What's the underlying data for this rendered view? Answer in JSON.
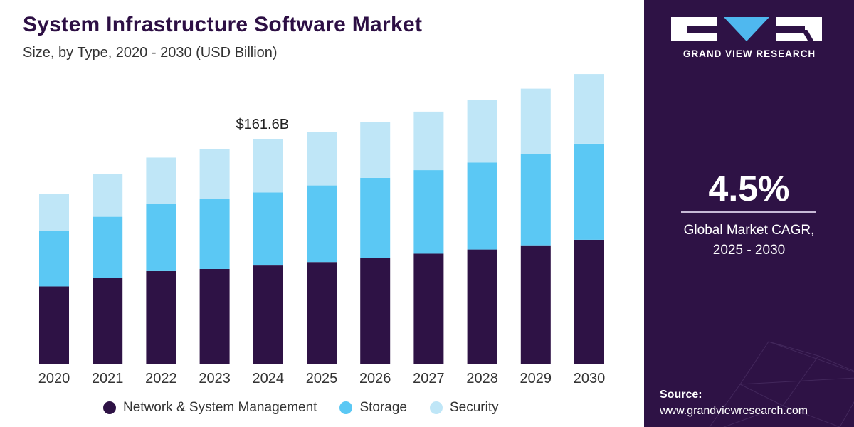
{
  "chart_data": {
    "type": "bar",
    "stacked": true,
    "title": "System Infrastructure Software Market",
    "subtitle": "Size, by Type, 2020 - 2030 (USD Billion)",
    "categories": [
      "2020",
      "2021",
      "2022",
      "2023",
      "2024",
      "2025",
      "2026",
      "2027",
      "2028",
      "2029",
      "2030"
    ],
    "series": [
      {
        "name": "Network & System Management",
        "color": "#2e1245",
        "values": [
          56.0,
          62.0,
          67.0,
          68.5,
          71.0,
          73.5,
          76.5,
          79.5,
          82.5,
          85.5,
          89.5
        ]
      },
      {
        "name": "Storage",
        "color": "#5bc8f4",
        "values": [
          40.0,
          44.0,
          48.0,
          50.5,
          52.5,
          55.0,
          57.5,
          60.0,
          62.5,
          65.5,
          69.0
        ]
      },
      {
        "name": "Security",
        "color": "#bfe6f7",
        "values": [
          26.5,
          30.5,
          33.5,
          35.5,
          38.1,
          38.5,
          40.0,
          42.0,
          45.0,
          47.0,
          50.0
        ]
      }
    ],
    "annotations": [
      {
        "category": "2024",
        "text": "$161.6B"
      }
    ],
    "ylim": [
      0,
      230
    ],
    "xlabel": "",
    "ylabel": "",
    "grid": false,
    "legend": "bottom"
  },
  "legend": {
    "items": [
      {
        "label": "Network & System Management",
        "color": "#2e1245"
      },
      {
        "label": "Storage",
        "color": "#5bc8f4"
      },
      {
        "label": "Security",
        "color": "#bfe6f7"
      }
    ]
  },
  "side_panel": {
    "brand": "GRAND VIEW RESEARCH",
    "cagr_value": "4.5%",
    "cagr_label_line1": "Global Market CAGR,",
    "cagr_label_line2": "2025 - 2030",
    "source_label": "Source:",
    "source_url": "www.grandviewresearch.com",
    "background": "#2e1245"
  }
}
